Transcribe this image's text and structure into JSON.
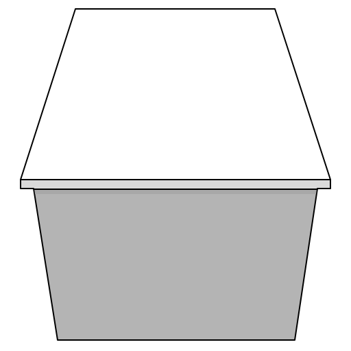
{
  "object": {
    "colors": {
      "background": "#ffffff",
      "top_face": "#ffffff",
      "lip_face": "#d9d9d9",
      "lip_shadow": "#a8a8a8",
      "body_face": "#b4b4b4",
      "outline": "#000000"
    }
  }
}
